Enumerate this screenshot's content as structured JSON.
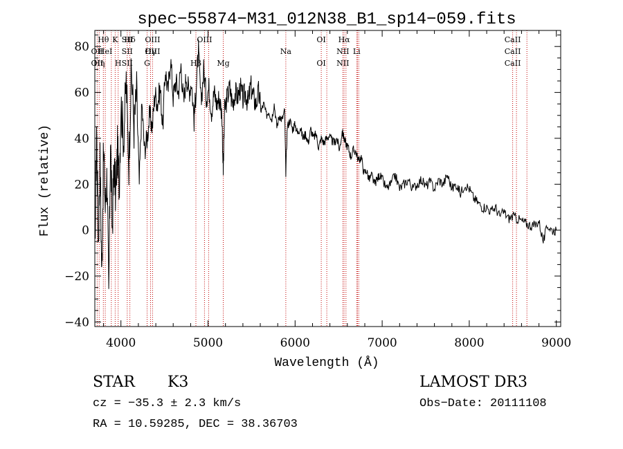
{
  "chart_data": {
    "type": "line",
    "title": "spec−55874−M31_012N38_B1_sp14−059.fits",
    "xlabel": "Wavelength (Å)",
    "ylabel": "Flux (relative)",
    "xlim": [
      3700,
      9050
    ],
    "ylim": [
      -42,
      87
    ],
    "xticks": [
      4000,
      5000,
      6000,
      7000,
      8000,
      9000
    ],
    "xtick_labels": [
      "4000",
      "5000",
      "6000",
      "7000",
      "8000",
      "9000"
    ],
    "yticks": [
      -40,
      -20,
      0,
      20,
      40,
      60,
      80
    ],
    "ytick_labels": [
      "−40",
      "−20",
      "0",
      "20",
      "40",
      "60",
      "80"
    ],
    "line_color": "#000000",
    "marker_color": "#c00000",
    "series": [
      {
        "name": "flux",
        "x": [
          3700,
          3720,
          3740,
          3760,
          3780,
          3800,
          3820,
          3840,
          3860,
          3880,
          3900,
          3920,
          3940,
          3960,
          3980,
          4000,
          4030,
          4060,
          4090,
          4120,
          4150,
          4180,
          4210,
          4240,
          4270,
          4300,
          4330,
          4360,
          4390,
          4420,
          4450,
          4480,
          4510,
          4540,
          4570,
          4600,
          4630,
          4660,
          4690,
          4720,
          4750,
          4780,
          4810,
          4840,
          4860,
          4890,
          4920,
          4950,
          4980,
          5010,
          5040,
          5070,
          5100,
          5130,
          5160,
          5175,
          5190,
          5220,
          5250,
          5280,
          5310,
          5340,
          5370,
          5400,
          5430,
          5460,
          5490,
          5520,
          5550,
          5580,
          5610,
          5640,
          5670,
          5700,
          5730,
          5760,
          5790,
          5820,
          5850,
          5880,
          5893,
          5910,
          5940,
          5970,
          6000,
          6030,
          6060,
          6090,
          6120,
          6150,
          6180,
          6210,
          6240,
          6270,
          6300,
          6330,
          6360,
          6390,
          6420,
          6450,
          6480,
          6510,
          6540,
          6563,
          6580,
          6610,
          6640,
          6670,
          6700,
          6730,
          6760,
          6790,
          6820,
          6850,
          6880,
          6910,
          6940,
          6970,
          7000,
          7050,
          7100,
          7150,
          7200,
          7250,
          7300,
          7350,
          7400,
          7450,
          7500,
          7550,
          7600,
          7650,
          7700,
          7750,
          7800,
          7850,
          7900,
          7950,
          8000,
          8050,
          8100,
          8150,
          8200,
          8250,
          8300,
          8350,
          8400,
          8450,
          8500,
          8550,
          8600,
          8650,
          8700,
          8750,
          8800,
          8850,
          8900,
          8950,
          9000
        ],
        "y": [
          -10,
          45,
          -5,
          30,
          -20,
          35,
          10,
          25,
          -30,
          40,
          0,
          30,
          15,
          35,
          20,
          55,
          40,
          65,
          30,
          70,
          45,
          60,
          20,
          55,
          35,
          40,
          50,
          45,
          60,
          55,
          62,
          45,
          70,
          60,
          75,
          58,
          65,
          60,
          72,
          55,
          68,
          60,
          65,
          48,
          60,
          78,
          55,
          70,
          58,
          62,
          52,
          60,
          55,
          58,
          50,
          25,
          52,
          58,
          62,
          55,
          60,
          58,
          62,
          57,
          60,
          55,
          63,
          58,
          55,
          60,
          52,
          55,
          50,
          52,
          48,
          55,
          45,
          50,
          48,
          52,
          25,
          45,
          48,
          44,
          46,
          42,
          45,
          40,
          42,
          38,
          44,
          40,
          42,
          36,
          40,
          38,
          40,
          41,
          39,
          38,
          40,
          35,
          43,
          40,
          38,
          36,
          32,
          35,
          34,
          30,
          32,
          25,
          26,
          22,
          24,
          20,
          22,
          24,
          22,
          18,
          20,
          24,
          18,
          20,
          22,
          18,
          20,
          22,
          19,
          21,
          18,
          22,
          20,
          24,
          18,
          20,
          16,
          20,
          18,
          14,
          12,
          10,
          10,
          8,
          10,
          6,
          8,
          5,
          6,
          5,
          4,
          3,
          2,
          2,
          4,
          -5,
          2,
          0,
          0
        ]
      }
    ],
    "line_markers": [
      {
        "wavelength": 3727,
        "label": "OII"
      },
      {
        "wavelength": 3750,
        "label": "Hη"
      },
      {
        "wavelength": 3798,
        "label": "Hθ"
      },
      {
        "wavelength": 3820,
        "label": "HeI"
      },
      {
        "wavelength": 3889,
        "label": "HeI"
      },
      {
        "wavelength": 3934,
        "label": "K"
      },
      {
        "wavelength": 3968,
        "label": "H"
      },
      {
        "wavelength": 4072,
        "label": "SII"
      },
      {
        "wavelength": 4102,
        "label": "Hδ"
      },
      {
        "wavelength": 4300,
        "label": "G"
      },
      {
        "wavelength": 4340,
        "label": "Hγ"
      },
      {
        "wavelength": 4363,
        "label": "OIII"
      },
      {
        "wavelength": 4861,
        "label": "Hβ"
      },
      {
        "wavelength": 4959,
        "label": "OIII"
      },
      {
        "wavelength": 5007,
        "label": "OIII"
      },
      {
        "wavelength": 5175,
        "label": "Mg"
      },
      {
        "wavelength": 5893,
        "label": "Na"
      },
      {
        "wavelength": 6300,
        "label": "OI"
      },
      {
        "wavelength": 6364,
        "label": "OI"
      },
      {
        "wavelength": 6548,
        "label": "NII"
      },
      {
        "wavelength": 6563,
        "label": "Hα"
      },
      {
        "wavelength": 6584,
        "label": "NII"
      },
      {
        "wavelength": 6707,
        "label": "Li"
      },
      {
        "wavelength": 6717,
        "label": "SII"
      },
      {
        "wavelength": 6731,
        "label": "SII"
      },
      {
        "wavelength": 8498,
        "label": "CaII"
      },
      {
        "wavelength": 8542,
        "label": "CaII"
      },
      {
        "wavelength": 8662,
        "label": "CaII"
      }
    ],
    "line_marker_label_rows": [
      [
        "Hθ",
        "K",
        "Hδ",
        "OIII",
        "OIII",
        "OI",
        "Hα",
        "SII",
        "CaII"
      ],
      [
        "OII",
        "HeI",
        "SII",
        "Hγ",
        "OIII",
        "Na",
        "NII",
        "Li",
        "CaII"
      ],
      [
        "OII",
        "Hη",
        "H",
        "G",
        "Hβ",
        "Mg",
        "OI",
        "NII",
        "SII",
        "CaII"
      ]
    ]
  },
  "info": {
    "object_class": "STAR",
    "subclass": "K3",
    "velocity": "cz = −35.3 ± 2.3 km/s",
    "coordinates": "RA =  10.59285, DEC =  38.36703",
    "survey": "LAMOST DR3",
    "obs_date": "Obs−Date: 20111108"
  }
}
